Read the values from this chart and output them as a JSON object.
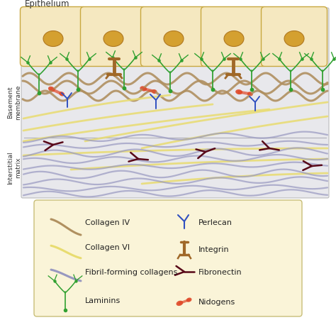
{
  "title": "Epithelium",
  "label_basement": "Basement\nmembrane",
  "label_interstitial": "Interstitial\nmatrix",
  "fig_bg": "#ffffff",
  "diagram_bg": "#e8e8ec",
  "epithelium_bg": "#f5e8c0",
  "cell_border": "#c8a840",
  "nucleus_fill": "#d4a030",
  "nucleus_border": "#b07820",
  "collagen_iv_color": "#b09060",
  "collagen_vi_color": "#e8dc70",
  "fibril_color": "#9898c0",
  "laminin_color": "#30a030",
  "perlecan_color": "#3050c0",
  "integrin_color": "#a06828",
  "fibronectin_color": "#580818",
  "nidogen_color": "#e04828",
  "legend_bg": "#faf4d8",
  "legend_border": "#c8be78",
  "separator_color": "#b0b0b8"
}
